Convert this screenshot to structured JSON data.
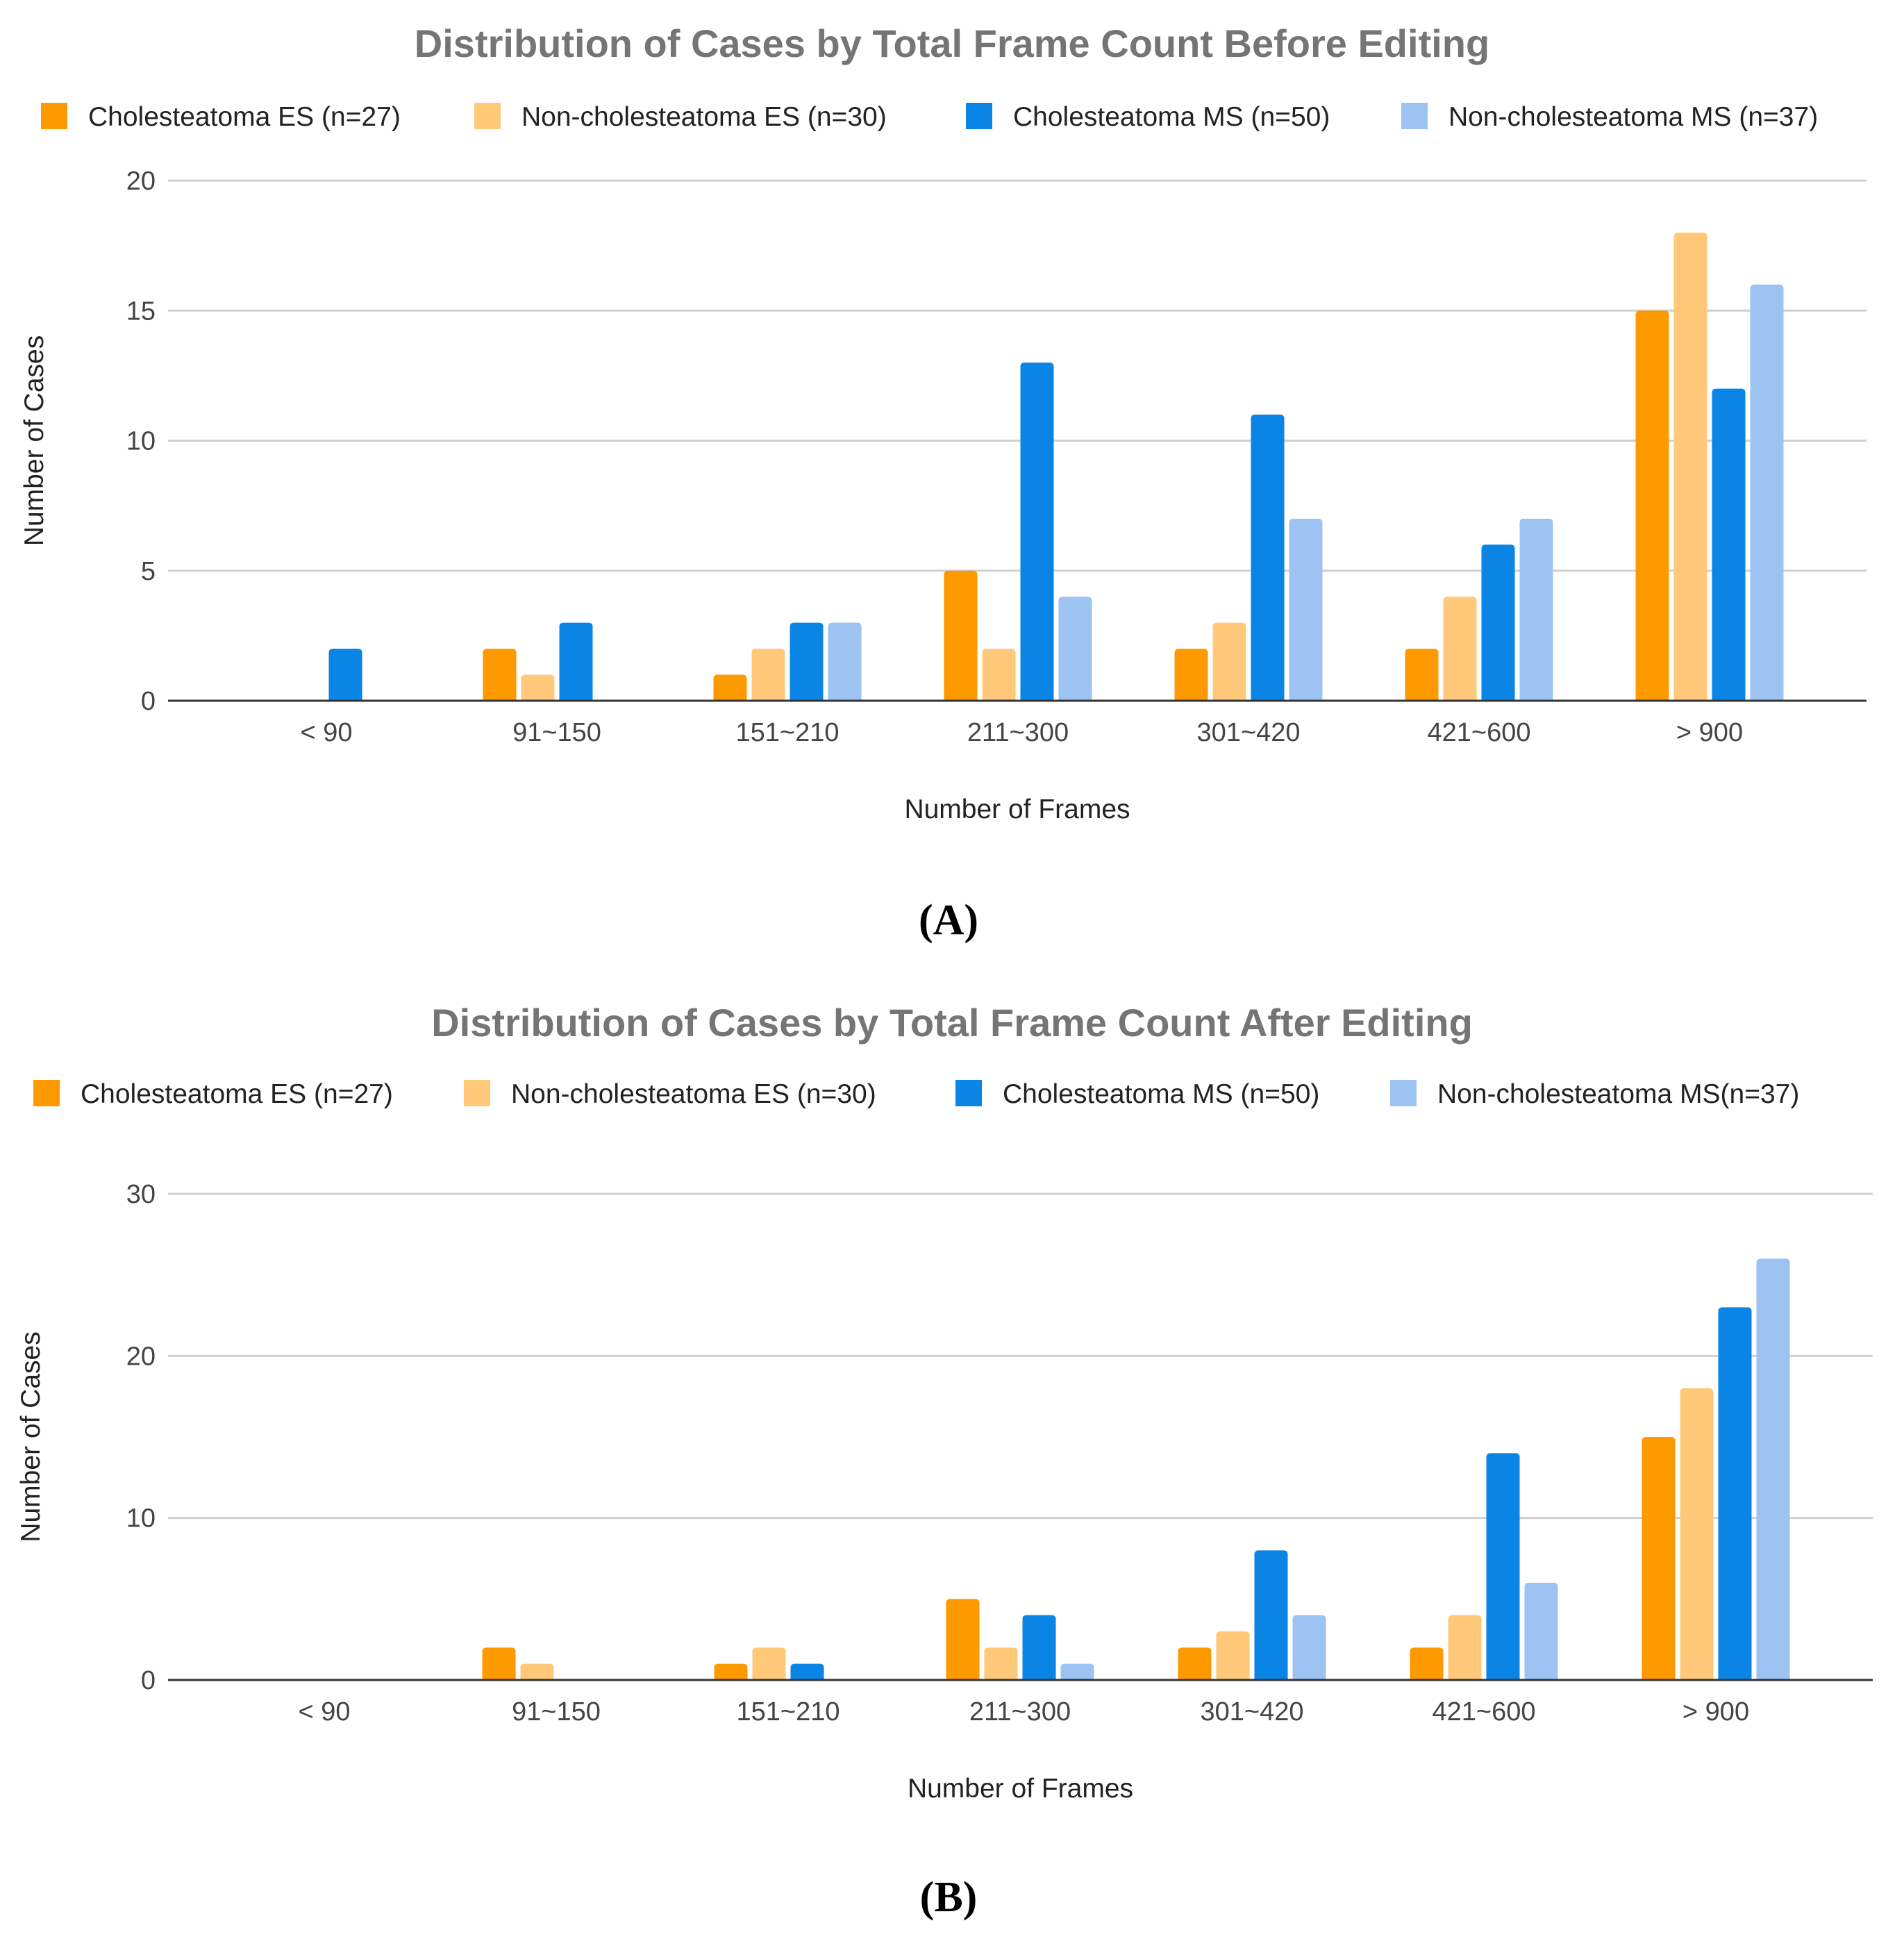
{
  "colors": {
    "ces": "#FF9900",
    "nes": "#FFC979",
    "cms": "#0A84E5",
    "nms": "#9CC3F2",
    "grid": "#d0d0d0",
    "axis": "#333333"
  },
  "chart_data": [
    {
      "type": "bar",
      "panel_label": "(A)",
      "title": "Distribution of Cases by Total Frame Count Before Editing",
      "xlabel": "Number of Frames",
      "ylabel": "Number of Cases",
      "ylim": [
        0,
        20
      ],
      "yticks": [
        0,
        5,
        10,
        15,
        20
      ],
      "grid": true,
      "legend_position": "top",
      "categories": [
        "< 90",
        "91~150",
        "151~210",
        "211~300",
        "301~420",
        "421~600",
        "> 900"
      ],
      "series": [
        {
          "name": "Cholesteatoma ES (n=27)",
          "color_key": "ces",
          "values": [
            0,
            2,
            1,
            5,
            2,
            2,
            15
          ]
        },
        {
          "name": "Non-cholesteatoma ES (n=30)",
          "color_key": "nes",
          "values": [
            0,
            1,
            2,
            2,
            3,
            4,
            18
          ]
        },
        {
          "name": "Cholesteatoma MS (n=50)",
          "color_key": "cms",
          "values": [
            2,
            3,
            3,
            13,
            11,
            6,
            12
          ]
        },
        {
          "name": "Non-cholesteatoma MS (n=37)",
          "color_key": "nms",
          "values": [
            0,
            0,
            3,
            4,
            7,
            7,
            16
          ]
        }
      ]
    },
    {
      "type": "bar",
      "panel_label": "(B)",
      "title": "Distribution of Cases by Total Frame Count  After Editing",
      "xlabel": "Number of Frames",
      "ylabel": "Number of Cases",
      "ylim": [
        0,
        30
      ],
      "yticks": [
        0,
        10,
        20,
        30
      ],
      "grid": true,
      "legend_position": "top",
      "categories": [
        "< 90",
        "91~150",
        "151~210",
        "211~300",
        "301~420",
        "421~600",
        "> 900"
      ],
      "series": [
        {
          "name": "Cholesteatoma ES (n=27)",
          "color_key": "ces",
          "values": [
            0,
            2,
            1,
            5,
            2,
            2,
            15
          ]
        },
        {
          "name": "Non-cholesteatoma ES (n=30)",
          "color_key": "nes",
          "values": [
            0,
            1,
            2,
            2,
            3,
            4,
            18
          ]
        },
        {
          "name": "Cholesteatoma MS (n=50)",
          "color_key": "cms",
          "values": [
            0,
            0,
            1,
            4,
            8,
            14,
            23
          ]
        },
        {
          "name": "Non-cholesteatoma MS(n=37)",
          "color_key": "nms",
          "values": [
            0,
            0,
            0,
            1,
            4,
            6,
            26
          ]
        }
      ]
    }
  ]
}
